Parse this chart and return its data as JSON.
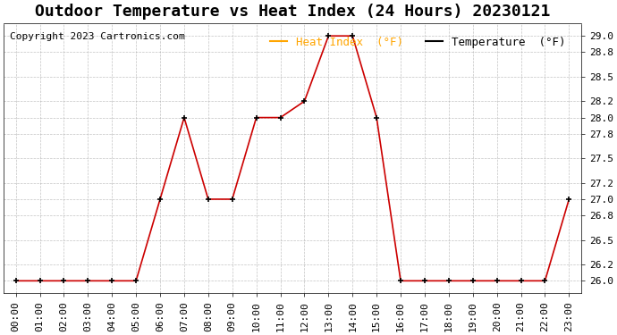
{
  "title": "Outdoor Temperature vs Heat Index (24 Hours) 20230121",
  "copyright": "Copyright 2023 Cartronics.com",
  "legend_heat": "Heat Index  (°F)",
  "legend_temp": "Temperature  (°F)",
  "x_labels": [
    "00:00",
    "01:00",
    "02:00",
    "03:00",
    "04:00",
    "05:00",
    "06:00",
    "07:00",
    "08:00",
    "09:00",
    "10:00",
    "11:00",
    "12:00",
    "13:00",
    "14:00",
    "15:00",
    "16:00",
    "17:00",
    "18:00",
    "19:00",
    "20:00",
    "21:00",
    "22:00",
    "23:00"
  ],
  "temperature": [
    26.0,
    26.0,
    26.0,
    26.0,
    26.0,
    26.0,
    27.0,
    28.0,
    27.0,
    27.0,
    28.0,
    28.0,
    28.2,
    29.0,
    29.0,
    28.0,
    26.0,
    26.0,
    26.0,
    26.0,
    26.0,
    26.0,
    26.0,
    27.0
  ],
  "heat_index": [
    26.0,
    26.0,
    26.0,
    26.0,
    26.0,
    26.0,
    27.0,
    28.0,
    27.0,
    27.0,
    28.0,
    28.0,
    28.2,
    29.0,
    29.0,
    28.0,
    26.0,
    26.0,
    26.0,
    26.0,
    26.0,
    26.0,
    26.0,
    27.0
  ],
  "ylim_min": 25.85,
  "ylim_max": 29.15,
  "yticks": [
    26.0,
    26.2,
    26.5,
    26.8,
    27.0,
    27.2,
    27.5,
    27.8,
    28.0,
    28.2,
    28.5,
    28.8,
    29.0
  ],
  "line_color": "#cc0000",
  "marker_color": "#000000",
  "grid_color": "#aaaaaa",
  "bg_color": "#ffffff",
  "title_fontsize": 13,
  "copyright_fontsize": 8,
  "legend_fontsize": 9,
  "tick_fontsize": 8
}
